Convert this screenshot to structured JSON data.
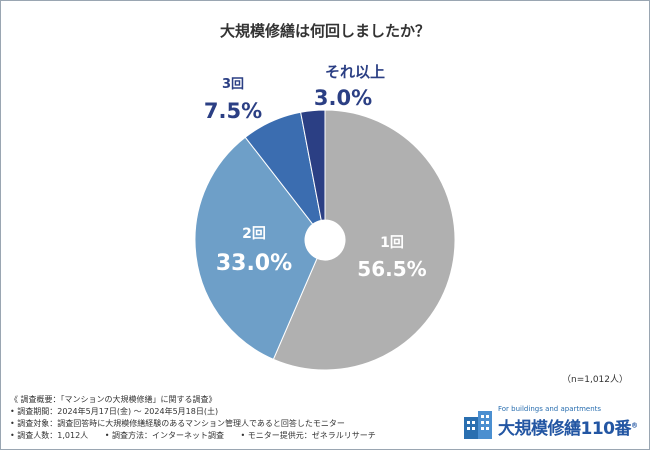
{
  "title": "大規模修繕は何回しましたか？",
  "sample_size": "（n=1,012人）",
  "chart_data": {
    "type": "pie",
    "donut": true,
    "title": "大規模修繕は何回しましたか？",
    "slices": [
      {
        "name": "1回",
        "value": 56.5,
        "display": "56.5%",
        "color": "#b0b0b0"
      },
      {
        "name": "2回",
        "value": 33.0,
        "display": "33.0%",
        "color": "#6e9fc8"
      },
      {
        "name": "3回",
        "value": 7.5,
        "display": "7.5%",
        "color": "#3b6db0"
      },
      {
        "name": "それ以上",
        "value": 3.0,
        "display": "3.0%",
        "color": "#2b3f84"
      }
    ]
  },
  "notes": {
    "header": "《 調査概要：「マンションの大規模修繕」に関する調査》",
    "period": "• 調査期間：2024年5月17日(金) ～ 2024年5月18日(土)",
    "target": "• 調査対象：調査回答時に大規模修繕経験のあるマンション管理人であると回答したモニター",
    "count": "• 調査人数：1,012人",
    "method": "• 調査方法：インターネット調査",
    "provider": "• モニター提供元：ゼネラルリサーチ"
  },
  "logo": {
    "tagline": "For buildings and apartments",
    "brand": "大規模修繕110番",
    "mark": "®"
  }
}
